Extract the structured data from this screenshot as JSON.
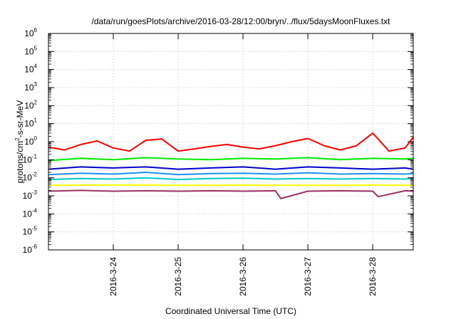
{
  "chart_data": {
    "type": "line",
    "title": "/data/run/goesPlots/archive/2016-03-28/12:00/bryn/../flux/5daysMoonFluxes.txt",
    "xlabel": "Coordinated Universal Time (UTC)",
    "ylabel": "protons/cm2-s-sr-MeV",
    "ylabel_parts": {
      "before": "protons/cm",
      "sup": "2",
      "after": "-s-sr-MeV"
    },
    "y_scale": "log",
    "ylim": [
      1e-06,
      1000000.0
    ],
    "y_ticks": [
      {
        "base": "10",
        "exp": "-6"
      },
      {
        "base": "10",
        "exp": "-5"
      },
      {
        "base": "10",
        "exp": "-4"
      },
      {
        "base": "10",
        "exp": "-3"
      },
      {
        "base": "10",
        "exp": "-2"
      },
      {
        "base": "10",
        "exp": "-1"
      },
      {
        "base": "10",
        "exp": "0"
      },
      {
        "base": "10",
        "exp": "1"
      },
      {
        "base": "10",
        "exp": "2"
      },
      {
        "base": "10",
        "exp": "3"
      },
      {
        "base": "10",
        "exp": "4"
      },
      {
        "base": "10",
        "exp": "5"
      },
      {
        "base": "10",
        "exp": "6"
      }
    ],
    "xlim": [
      "2016-03-23 00:00",
      "2016-03-28 15:00"
    ],
    "x_ticks": [
      "2016-3-24",
      "2016-3-25",
      "2016-3-26",
      "2016-3-27",
      "2016-3-28"
    ],
    "grid": true,
    "series": [
      {
        "color": "#ff0000",
        "x": [
          "2016-03-23 00:00",
          "2016-03-23 06:00",
          "2016-03-23 12:00",
          "2016-03-23 18:00",
          "2016-03-24 00:00",
          "2016-03-24 06:00",
          "2016-03-24 12:00",
          "2016-03-24 18:00",
          "2016-03-25 00:00",
          "2016-03-25 06:00",
          "2016-03-25 12:00",
          "2016-03-25 18:00",
          "2016-03-26 00:00",
          "2016-03-26 06:00",
          "2016-03-26 12:00",
          "2016-03-26 18:00",
          "2016-03-27 00:00",
          "2016-03-27 06:00",
          "2016-03-27 12:00",
          "2016-03-27 18:00",
          "2016-03-28 00:00",
          "2016-03-28 06:00",
          "2016-03-28 12:00",
          "2016-03-28 15:00"
        ],
        "values": [
          0.5,
          0.35,
          0.7,
          1.1,
          0.45,
          0.3,
          1.2,
          1.4,
          0.3,
          0.4,
          0.55,
          0.7,
          0.5,
          0.4,
          0.6,
          1.0,
          1.5,
          0.6,
          0.35,
          0.6,
          3.0,
          0.3,
          0.45,
          1.8
        ]
      },
      {
        "color": "#00ee00",
        "x": [
          "2016-03-23 00:00",
          "2016-03-23 12:00",
          "2016-03-24 00:00",
          "2016-03-24 12:00",
          "2016-03-25 00:00",
          "2016-03-25 12:00",
          "2016-03-26 00:00",
          "2016-03-26 12:00",
          "2016-03-27 00:00",
          "2016-03-27 12:00",
          "2016-03-28 00:00",
          "2016-03-28 12:00",
          "2016-03-28 15:00"
        ],
        "values": [
          0.09,
          0.12,
          0.1,
          0.13,
          0.11,
          0.1,
          0.12,
          0.11,
          0.13,
          0.1,
          0.12,
          0.11,
          0.12
        ]
      },
      {
        "color": "#0000cc",
        "x": [
          "2016-03-23 00:00",
          "2016-03-23 12:00",
          "2016-03-24 00:00",
          "2016-03-24 12:00",
          "2016-03-25 00:00",
          "2016-03-25 12:00",
          "2016-03-26 00:00",
          "2016-03-26 12:00",
          "2016-03-27 00:00",
          "2016-03-27 12:00",
          "2016-03-28 00:00",
          "2016-03-28 12:00",
          "2016-03-28 15:00"
        ],
        "values": [
          0.03,
          0.04,
          0.035,
          0.04,
          0.03,
          0.035,
          0.04,
          0.03,
          0.04,
          0.035,
          0.03,
          0.035,
          0.03
        ]
      },
      {
        "color": "#1e90ff",
        "x": [
          "2016-03-23 00:00",
          "2016-03-23 12:00",
          "2016-03-24 00:00",
          "2016-03-24 12:00",
          "2016-03-25 00:00",
          "2016-03-25 12:00",
          "2016-03-26 00:00",
          "2016-03-26 12:00",
          "2016-03-27 00:00",
          "2016-03-27 12:00",
          "2016-03-28 00:00",
          "2016-03-28 12:00",
          "2016-03-28 15:00"
        ],
        "values": [
          0.015,
          0.018,
          0.016,
          0.02,
          0.015,
          0.017,
          0.018,
          0.016,
          0.019,
          0.016,
          0.017,
          0.016,
          0.017
        ]
      },
      {
        "color": "#00cccc",
        "x": [
          "2016-03-23 00:00",
          "2016-03-23 12:00",
          "2016-03-24 00:00",
          "2016-03-24 12:00",
          "2016-03-25 00:00",
          "2016-03-25 12:00",
          "2016-03-26 00:00",
          "2016-03-26 12:00",
          "2016-03-27 00:00",
          "2016-03-27 12:00",
          "2016-03-28 00:00",
          "2016-03-28 12:00",
          "2016-03-28 15:00"
        ],
        "values": [
          0.008,
          0.009,
          0.0085,
          0.01,
          0.008,
          0.009,
          0.0095,
          0.0085,
          0.009,
          0.0085,
          0.009,
          0.0085,
          0.009
        ]
      },
      {
        "color": "#ffff00",
        "x": [
          "2016-03-23 00:00",
          "2016-03-24 00:00",
          "2016-03-25 00:00",
          "2016-03-26 00:00",
          "2016-03-27 00:00",
          "2016-03-28 00:00",
          "2016-03-28 15:00"
        ],
        "values": [
          0.0038,
          0.004,
          0.0038,
          0.0039,
          0.0038,
          0.0039,
          0.0038
        ]
      },
      {
        "color": "#993366",
        "x": [
          "2016-03-23 00:00",
          "2016-03-23 12:00",
          "2016-03-24 00:00",
          "2016-03-24 12:00",
          "2016-03-25 00:00",
          "2016-03-25 12:00",
          "2016-03-26 00:00",
          "2016-03-26 12:00",
          "2016-03-26 14:00",
          "2016-03-27 00:00",
          "2016-03-27 12:00",
          "2016-03-28 00:00",
          "2016-03-28 02:00",
          "2016-03-28 12:00",
          "2016-03-28 15:00"
        ],
        "values": [
          0.0018,
          0.002,
          0.0018,
          0.0019,
          0.0018,
          0.0019,
          0.0018,
          0.0019,
          0.0007,
          0.0018,
          0.0019,
          0.0018,
          0.0009,
          0.0019,
          0.0018
        ]
      }
    ]
  }
}
